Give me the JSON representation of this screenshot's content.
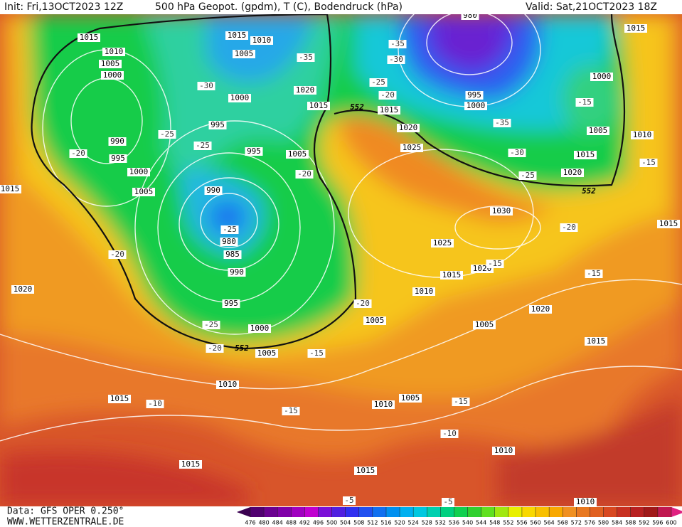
{
  "header": {
    "init": "Init: Fri,13OCT2023 12Z",
    "title": "500 hPa Geopot. (gpdm), T (C), Bodendruck (hPa)",
    "valid": "Valid: Sat,21OCT2023 18Z"
  },
  "footer": {
    "source": "Data: GFS OPER 0.250°",
    "site": "WWW.WETTERZENTRALE.DE"
  },
  "legend": {
    "values": [
      476,
      480,
      484,
      488,
      492,
      496,
      500,
      504,
      508,
      512,
      516,
      520,
      524,
      528,
      532,
      536,
      540,
      544,
      548,
      552,
      556,
      560,
      564,
      568,
      572,
      576,
      580,
      584,
      588,
      592,
      596,
      600
    ]
  },
  "map": {
    "pressure_labels": [
      1015,
      1010,
      1005,
      1000,
      990,
      995,
      1000,
      1005,
      1015,
      1010,
      1005,
      1000,
      995,
      995,
      1020,
      1015,
      1005,
      990,
      980,
      985,
      990,
      995,
      1000,
      1005,
      1010,
      1015,
      1020,
      1015,
      980,
      995,
      1000,
      1015,
      1020,
      1025,
      1030,
      1025,
      1015,
      1020,
      1010,
      1005,
      1005,
      1020,
      1015,
      1005,
      1010,
      1010,
      1015,
      1015,
      1000,
      1005,
      1010,
      1015,
      1020,
      1015,
      1015,
      1010
    ],
    "temperature_labels": [
      -35,
      -30,
      -25,
      -25,
      -20,
      -20,
      -25,
      -20,
      -25,
      -20,
      -15,
      -20,
      -10,
      -15,
      -15,
      -10,
      -5,
      -5,
      -35,
      -30,
      -25,
      -20,
      -35,
      -30,
      -25,
      -20,
      -15,
      -15,
      -15,
      -15
    ],
    "contour_labels": [
      552,
      552,
      552
    ]
  }
}
